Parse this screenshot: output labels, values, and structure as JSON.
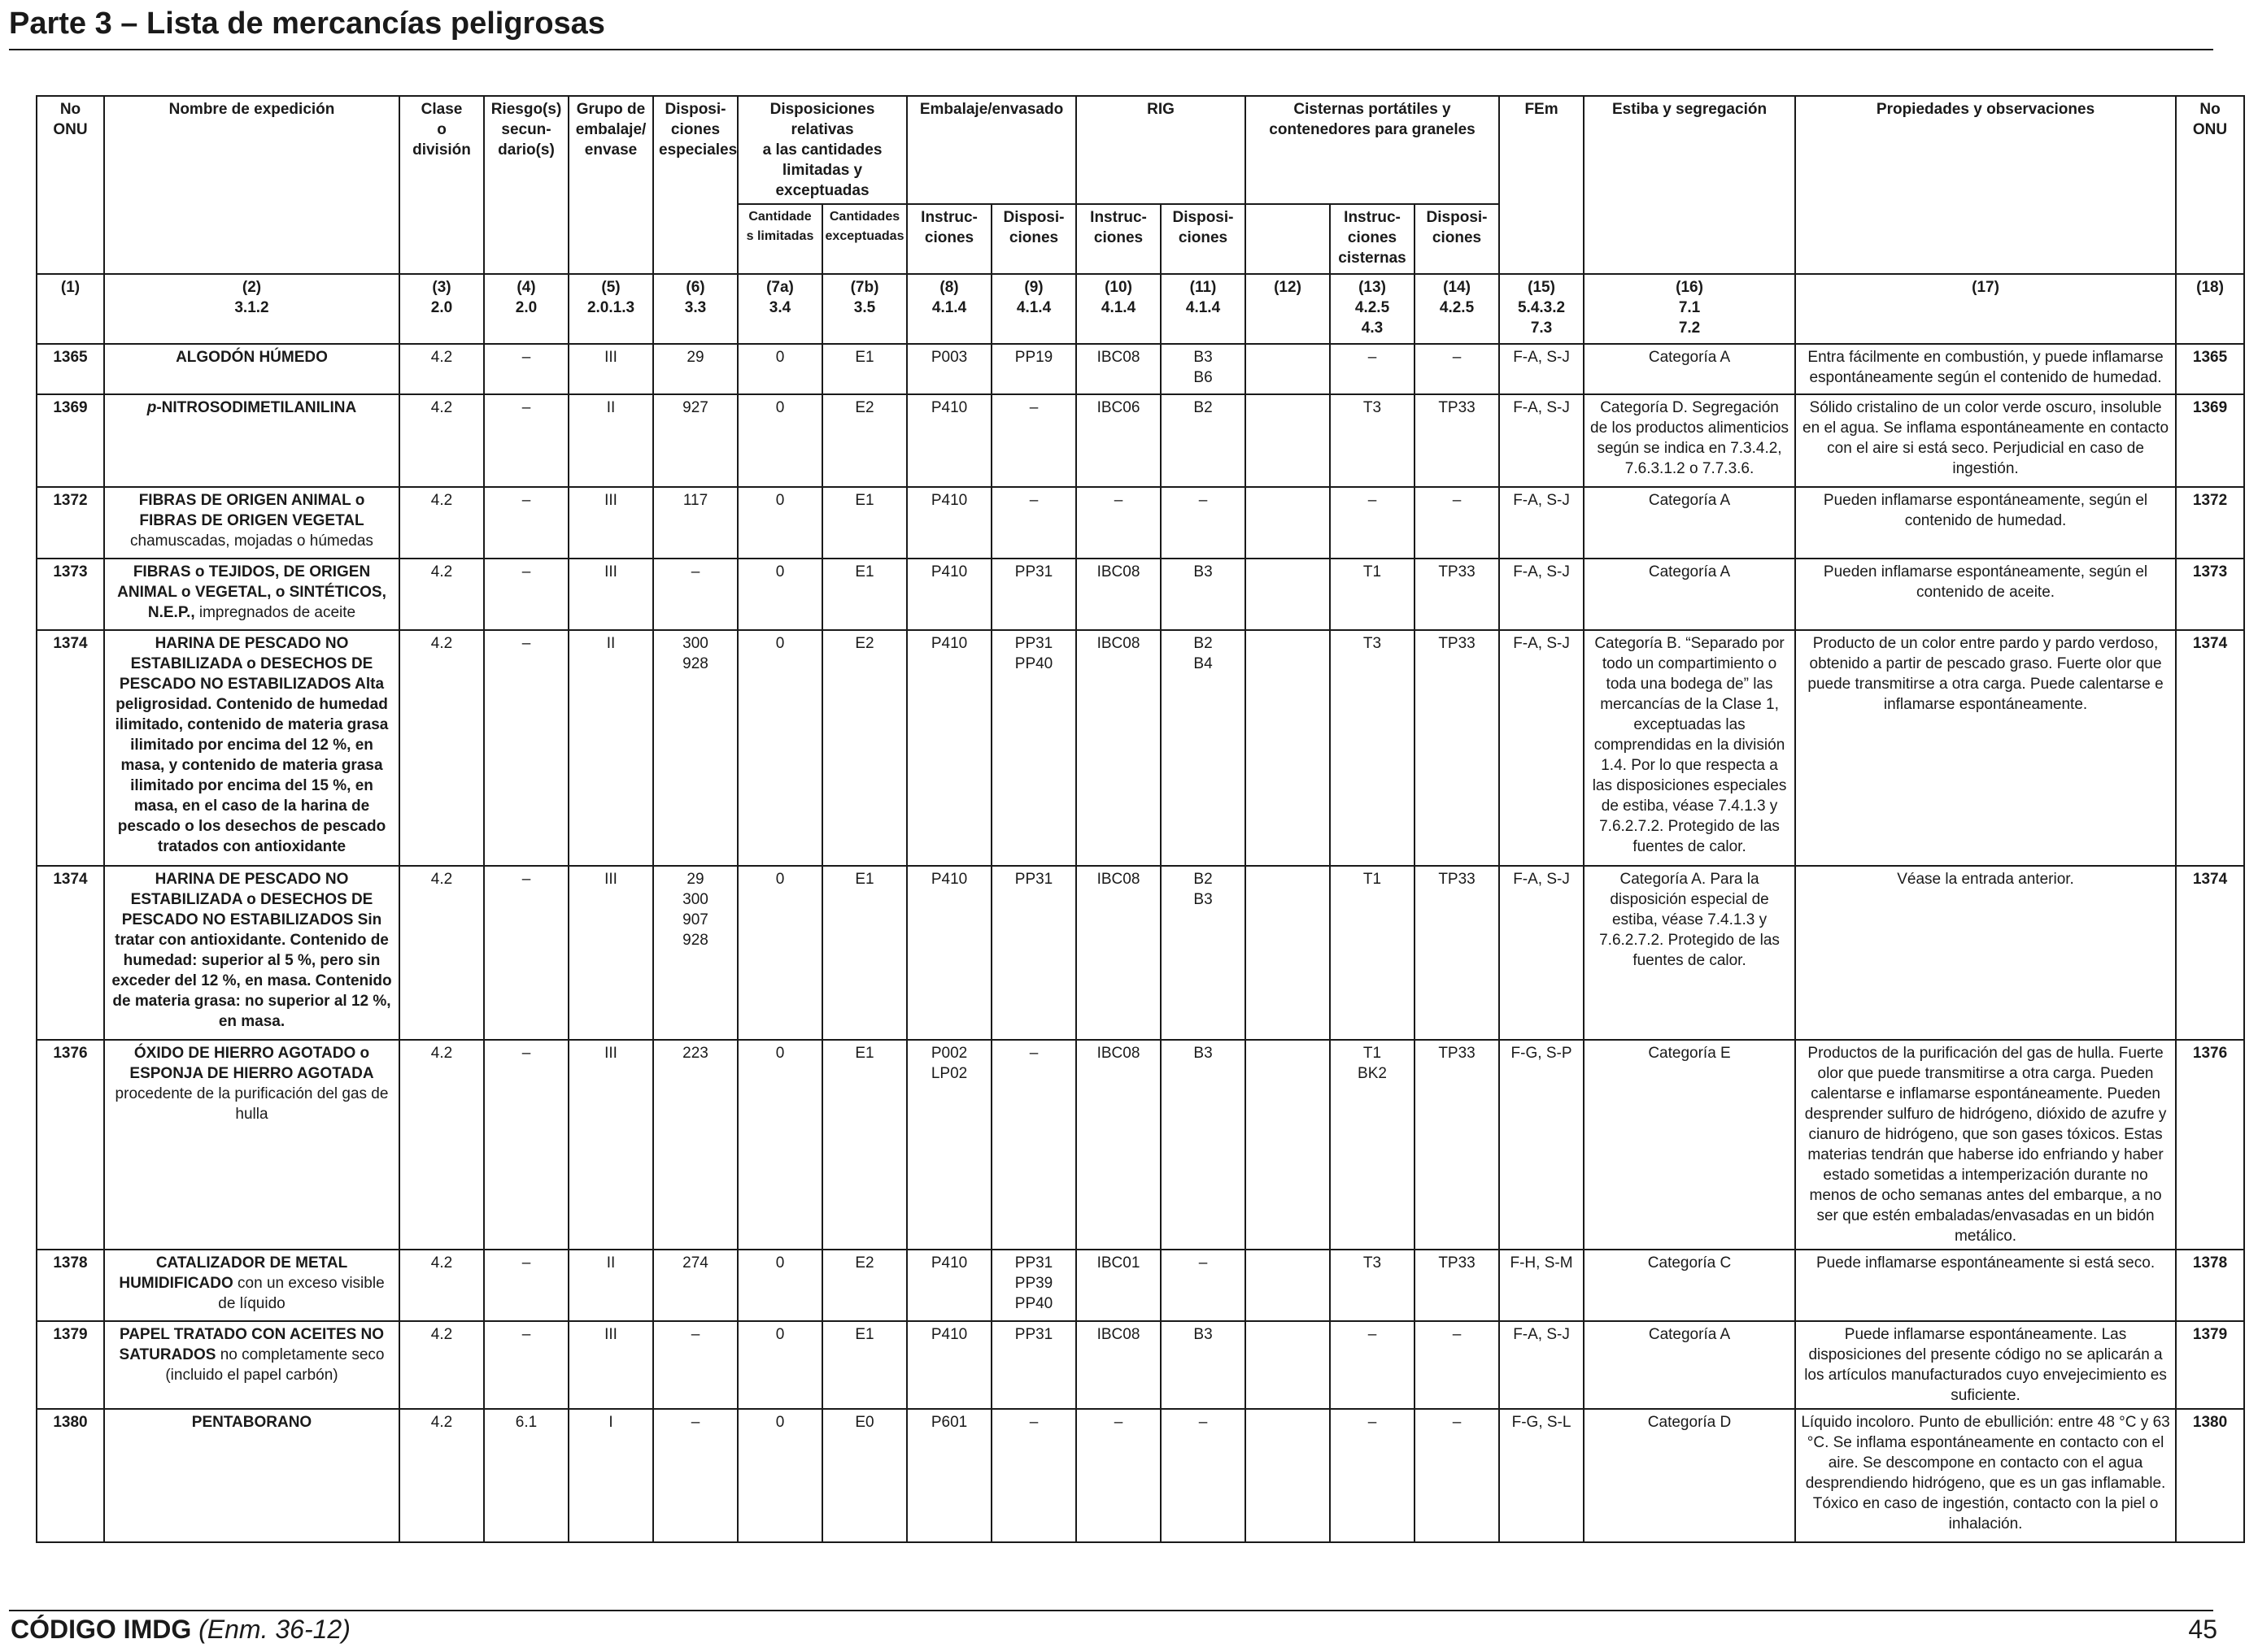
{
  "page": {
    "title": "Parte 3 – Lista de mercancías peligrosas",
    "footer_code": "CÓDIGO IMDG",
    "footer_amendment": "(Enm. 36-12)",
    "page_number": "45"
  },
  "headers": {
    "no_onu": "No\nONU",
    "nombre": "Nombre de expedición",
    "clase": "Clase\no\ndivisión",
    "riesgo": "Riesgo(s)\nsecun-\ndario(s)",
    "grupo": "Grupo de\nembalaje/\nenvase",
    "disposiciones": "Disposi-\nciones\nespeciales",
    "cantidades": "Disposiciones relativas\na las cantidades\nlimitadas y exceptuadas",
    "embalaje": "Embalaje/envasado",
    "rig": "RIG",
    "cisternas": "Cisternas portátiles y\ncontenedores para graneles",
    "fem": "FEm",
    "estiba": "Estiba y segregación",
    "propiedades": "Propiedades y observaciones",
    "no_onu_right": "No\nONU",
    "sub_7a": "Cantidade\ns limitadas",
    "sub_7b": "Cantidades\nexceptuadas",
    "sub_8": "Instruc-\nciones",
    "sub_9": "Disposi-\nciones",
    "sub_10": "Instruc-\nciones",
    "sub_11": "Disposi-\nciones",
    "sub_13": "Instruc-\nciones\ncisternas",
    "sub_14": "Disposi-\nciones"
  },
  "refs": [
    "(1)",
    "(2)\n3.1.2",
    "(3)\n2.0",
    "(4)\n2.0",
    "(5)\n2.0.1.3",
    "(6)\n3.3",
    "(7a)\n3.4",
    "(7b)\n3.5",
    "(8)\n4.1.4",
    "(9)\n4.1.4",
    "(10)\n4.1.4",
    "(11)\n4.1.4",
    "(12)",
    "(13)\n4.2.5\n4.3",
    "(14)\n4.2.5",
    "(15)\n5.4.3.2\n7.3",
    "(16)\n7.1\n7.2",
    "(17)",
    "(18)"
  ],
  "rows": [
    {
      "onu": "1365",
      "name_bold": "ALGODÓN HÚMEDO",
      "name_normal": "",
      "clase": "4.2",
      "riesgo": "–",
      "grupo": "III",
      "disp": "29",
      "c7a": "0",
      "c7b": "E1",
      "emb_instr": "P003",
      "emb_disp": "PP19",
      "rig_instr": "IBC08",
      "rig_disp": "B3\nB6",
      "c12": "",
      "cist_instr": "–",
      "cist_disp": "–",
      "fem": "F-A, S-J",
      "estiba": "Categoría A",
      "propiedades": "Entra fácilmente en combustión, y puede inflamarse espontáneamente según el contenido de humedad.",
      "onu2": "1365"
    },
    {
      "onu": "1369",
      "name_italic": "p",
      "name_bold": "-NITROSODIMETILANILINA",
      "name_normal": "",
      "clase": "4.2",
      "riesgo": "–",
      "grupo": "II",
      "disp": "927",
      "c7a": "0",
      "c7b": "E2",
      "emb_instr": "P410",
      "emb_disp": "–",
      "rig_instr": "IBC06",
      "rig_disp": "B2",
      "c12": "",
      "cist_instr": "T3",
      "cist_disp": "TP33",
      "fem": "F-A, S-J",
      "estiba": "Categoría D. Segregación de los productos alimenticios según se indica en 7.3.4.2, 7.6.3.1.2 o 7.7.3.6.",
      "propiedades": "Sólido cristalino de un color verde oscuro, insoluble en el agua. Se inflama espontáneamente en contacto con el aire si está seco. Perjudicial en caso de ingestión.",
      "onu2": "1369"
    },
    {
      "onu": "1372",
      "name_bold": "FIBRAS DE ORIGEN ANIMAL o FIBRAS DE ORIGEN VEGETAL",
      "name_normal": " chamuscadas, mojadas o húmedas",
      "clase": "4.2",
      "riesgo": "–",
      "grupo": "III",
      "disp": "117",
      "c7a": "0",
      "c7b": "E1",
      "emb_instr": "P410",
      "emb_disp": "–",
      "rig_instr": "–",
      "rig_disp": "–",
      "c12": "",
      "cist_instr": "–",
      "cist_disp": "–",
      "fem": "F-A, S-J",
      "estiba": "Categoría A",
      "propiedades": "Pueden inflamarse espontáneamente, según el contenido de humedad.",
      "onu2": "1372"
    },
    {
      "onu": "1373",
      "name_bold": "FIBRAS o TEJIDOS, DE ORIGEN ANIMAL o VEGETAL, o SINTÉTICOS, N.E.P.,",
      "name_normal": " impregnados de aceite",
      "clase": "4.2",
      "riesgo": "–",
      "grupo": "III",
      "disp": "–",
      "c7a": "0",
      "c7b": "E1",
      "emb_instr": "P410",
      "emb_disp": "PP31",
      "rig_instr": "IBC08",
      "rig_disp": "B3",
      "c12": "",
      "cist_instr": "T1",
      "cist_disp": "TP33",
      "fem": "F-A, S-J",
      "estiba": "Categoría A",
      "propiedades": "Pueden inflamarse espontáneamente, según el contenido de aceite.",
      "onu2": "1373"
    },
    {
      "onu": "1374",
      "name_bold": "HARINA DE PESCADO NO ESTABILIZADA o DESECHOS DE PESCADO NO ESTABILIZADOS Alta peligrosidad. Contenido de humedad ilimitado, contenido de materia grasa ilimitado por encima del 12 %, en masa, y contenido de materia grasa ilimitado por encima del 15 %, en masa, en el caso de la harina de pescado o los desechos de pescado tratados con antioxidante",
      "name_normal": "",
      "clase": "4.2",
      "riesgo": "–",
      "grupo": "II",
      "disp": "300\n928",
      "c7a": "0",
      "c7b": "E2",
      "emb_instr": "P410",
      "emb_disp": "PP31\nPP40",
      "rig_instr": "IBC08",
      "rig_disp": "B2\nB4",
      "c12": "",
      "cist_instr": "T3",
      "cist_disp": "TP33",
      "fem": "F-A, S-J",
      "estiba": "Categoría B. “Separado por todo un compartimiento o toda una bodega de” las mercancías de la Clase 1, exceptuadas las comprendidas en la división 1.4. Por lo que respecta a las disposiciones especiales de estiba, véase 7.4.1.3 y 7.6.2.7.2. Protegido de las fuentes de calor.",
      "propiedades": "Producto de un color entre pardo y pardo verdoso, obtenido a partir de pescado graso. Fuerte olor que puede transmitirse a otra carga. Puede calentarse e inflamarse espontáneamente.",
      "onu2": "1374"
    },
    {
      "onu": "1374",
      "name_bold": "HARINA DE PESCADO NO ESTABILIZADA o DESECHOS DE PESCADO NO ESTABILIZADOS Sin tratar con antioxidante. Contenido de humedad: superior al 5 %, pero sin exceder del 12 %, en masa. Contenido de materia grasa: no superior al 12 %, en masa.",
      "name_normal": "",
      "clase": "4.2",
      "riesgo": "–",
      "grupo": "III",
      "disp": "29\n300\n907\n928",
      "c7a": "0",
      "c7b": "E1",
      "emb_instr": "P410",
      "emb_disp": "PP31",
      "rig_instr": "IBC08",
      "rig_disp": "B2\nB3",
      "c12": "",
      "cist_instr": "T1",
      "cist_disp": "TP33",
      "fem": "F-A, S-J",
      "estiba": "Categoría A. Para la disposición especial de estiba, véase 7.4.1.3 y 7.6.2.7.2. Protegido de las fuentes de calor.",
      "propiedades": "Véase la entrada anterior.",
      "onu2": "1374"
    },
    {
      "onu": "1376",
      "name_bold": "ÓXIDO DE HIERRO AGOTADO o ESPONJA DE HIERRO AGOTADA",
      "name_normal": " procedente de la purificación del gas de hulla",
      "clase": "4.2",
      "riesgo": "–",
      "grupo": "III",
      "disp": "223",
      "c7a": "0",
      "c7b": "E1",
      "emb_instr": "P002\nLP02",
      "emb_disp": "–",
      "rig_instr": "IBC08",
      "rig_disp": "B3",
      "c12": "",
      "cist_instr": "T1\nBK2",
      "cist_disp": "TP33",
      "fem": "F-G, S-P",
      "estiba": "Categoría E",
      "propiedades": "Productos de la purificación del gas de hulla. Fuerte olor que puede transmitirse a otra carga. Pueden calentarse e inflamarse espontáneamente. Pueden desprender sulfuro de hidrógeno, dióxido de azufre y cianuro de hidrógeno, que son gases tóxicos. Estas materias tendrán que haberse ido enfriando y haber estado sometidas a intemperización durante no menos de ocho semanas antes del embarque, a no ser que estén embaladas/envasadas en un bidón metálico.",
      "onu2": "1376"
    },
    {
      "onu": "1378",
      "name_bold": "CATALIZADOR DE METAL HUMIDIFICADO",
      "name_normal": " con un exceso visible de líquido",
      "clase": "4.2",
      "riesgo": "–",
      "grupo": "II",
      "disp": "274",
      "c7a": "0",
      "c7b": "E2",
      "emb_instr": "P410",
      "emb_disp": "PP31\nPP39\nPP40",
      "rig_instr": "IBC01",
      "rig_disp": "–",
      "c12": "",
      "cist_instr": "T3",
      "cist_disp": "TP33",
      "fem": "F-H, S-M",
      "estiba": "Categoría C",
      "propiedades": "Puede inflamarse espontáneamente si está seco.",
      "onu2": "1378"
    },
    {
      "onu": "1379",
      "name_bold": "PAPEL TRATADO CON ACEITES NO SATURADOS",
      "name_normal": " no completamente seco (incluido el papel carbón)",
      "clase": "4.2",
      "riesgo": "–",
      "grupo": "III",
      "disp": "–",
      "c7a": "0",
      "c7b": "E1",
      "emb_instr": "P410",
      "emb_disp": "PP31",
      "rig_instr": "IBC08",
      "rig_disp": "B3",
      "c12": "",
      "cist_instr": "–",
      "cist_disp": "–",
      "fem": "F-A, S-J",
      "estiba": "Categoría A",
      "propiedades": "Puede inflamarse espontáneamente. Las disposiciones del presente código no se aplicarán a los artículos manufacturados cuyo envejecimiento es suficiente.",
      "onu2": "1379"
    },
    {
      "onu": "1380",
      "name_bold": "PENTABORANO",
      "name_normal": "",
      "clase": "4.2",
      "riesgo": "6.1",
      "grupo": "I",
      "disp": "–",
      "c7a": "0",
      "c7b": "E0",
      "emb_instr": "P601",
      "emb_disp": "–",
      "rig_instr": "–",
      "rig_disp": "–",
      "c12": "",
      "cist_instr": "–",
      "cist_disp": "–",
      "fem": "F-G, S-L",
      "estiba": "Categoría D",
      "propiedades": "Líquido incoloro. Punto de ebullición: entre 48 °C y 63 °C. Se inflama espontáneamente en contacto con el aire. Se descompone en contacto con el agua desprendiendo hidrógeno, que es un gas inflamable. Tóxico en caso de ingestión, contacto con la piel o inhalación.",
      "onu2": "1380"
    }
  ]
}
